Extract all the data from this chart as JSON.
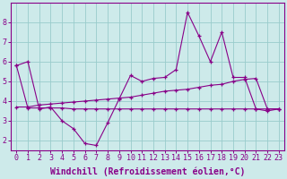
{
  "xlabel": "Windchill (Refroidissement éolien,°C)",
  "x_ticks": [
    0,
    1,
    2,
    3,
    4,
    5,
    6,
    7,
    8,
    9,
    10,
    11,
    12,
    13,
    14,
    15,
    16,
    17,
    18,
    19,
    20,
    21,
    22,
    23
  ],
  "ylim": [
    1.5,
    9.0
  ],
  "xlim": [
    -0.5,
    23.5
  ],
  "line1_y": [
    5.8,
    6.0,
    3.6,
    3.7,
    3.0,
    2.6,
    1.85,
    1.75,
    2.9,
    4.1,
    5.3,
    5.0,
    5.15,
    5.2,
    5.6,
    8.5,
    7.3,
    6.0,
    7.5,
    5.2,
    5.2,
    3.6,
    3.5,
    3.6
  ],
  "line2_y": [
    3.7,
    3.7,
    3.8,
    3.85,
    3.9,
    3.95,
    4.0,
    4.05,
    4.1,
    4.15,
    4.2,
    4.3,
    4.4,
    4.5,
    4.55,
    4.6,
    4.7,
    4.8,
    4.85,
    5.0,
    5.1,
    5.15,
    3.6,
    3.6
  ],
  "line3_y": [
    5.8,
    3.65,
    3.65,
    3.65,
    3.65,
    3.6,
    3.6,
    3.6,
    3.6,
    3.6,
    3.6,
    3.6,
    3.6,
    3.6,
    3.6,
    3.6,
    3.6,
    3.6,
    3.6,
    3.6,
    3.6,
    3.6,
    3.6,
    3.6
  ],
  "line_color": "#880088",
  "bg_color": "#cdeaea",
  "grid_color": "#99cccc",
  "tick_label_fontsize": 6,
  "xlabel_fontsize": 7
}
